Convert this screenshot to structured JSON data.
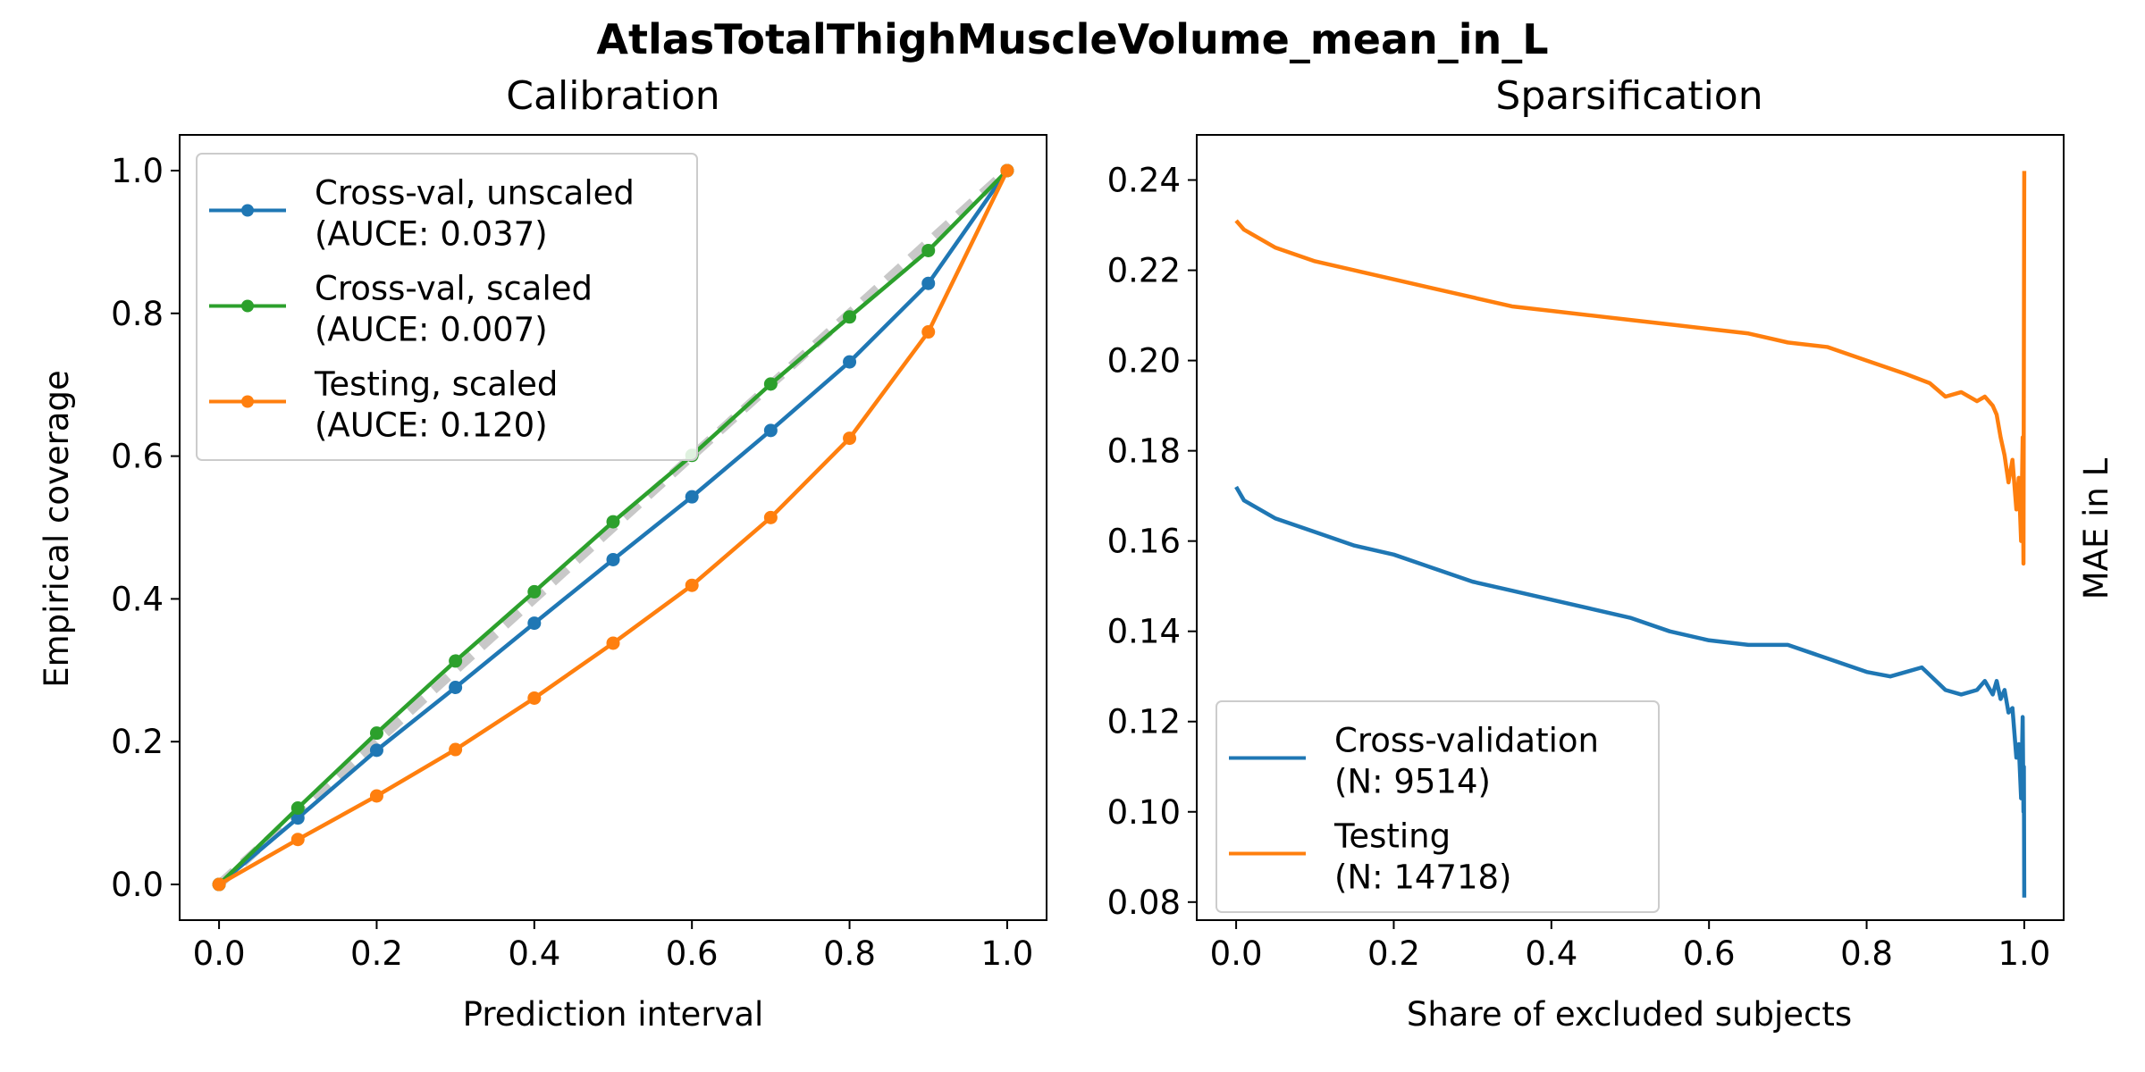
{
  "figure": {
    "suptitle": "AtlasTotalThighMuscleVolume_mean_in_L"
  },
  "chart_data": [
    {
      "type": "line",
      "title": "Calibration",
      "xlabel": "Prediction interval",
      "ylabel": "Empirical coverage",
      "xlim": [
        -0.05,
        1.05
      ],
      "ylim": [
        -0.05,
        1.05
      ],
      "xticks": [
        "0.0",
        "0.2",
        "0.4",
        "0.6",
        "0.8",
        "1.0"
      ],
      "yticks": [
        "0.0",
        "0.2",
        "0.4",
        "0.6",
        "0.8",
        "1.0"
      ],
      "grid": false,
      "legend_position": "upper left",
      "reference_line": {
        "x": [
          0,
          1
        ],
        "y": [
          0,
          1
        ],
        "color": "#c8c8c8",
        "style": "dashed"
      },
      "x": [
        0.0,
        0.1,
        0.2,
        0.3,
        0.4,
        0.5,
        0.6,
        0.7,
        0.8,
        0.9,
        1.0
      ],
      "series": [
        {
          "name": "Cross-val, unscaled",
          "name_extra": "(AUCE: 0.037)",
          "color": "#1f77b4",
          "marker": "circle",
          "values": [
            0.0,
            0.093,
            0.188,
            0.276,
            0.366,
            0.455,
            0.543,
            0.636,
            0.732,
            0.842,
            1.0
          ]
        },
        {
          "name": "Cross-val, scaled",
          "name_extra": "(AUCE: 0.007)",
          "color": "#2ca02c",
          "marker": "circle",
          "values": [
            0.0,
            0.107,
            0.212,
            0.313,
            0.41,
            0.508,
            0.601,
            0.701,
            0.795,
            0.888,
            1.0
          ]
        },
        {
          "name": "Testing, scaled",
          "name_extra": "(AUCE: 0.120)",
          "color": "#ff7f0e",
          "marker": "circle",
          "values": [
            0.0,
            0.063,
            0.124,
            0.189,
            0.261,
            0.338,
            0.419,
            0.514,
            0.625,
            0.774,
            1.0
          ]
        }
      ]
    },
    {
      "type": "line",
      "title": "Sparsification",
      "xlabel": "Share of excluded subjects",
      "ylabel": "MAE in L",
      "ylabel_position": "right",
      "xlim": [
        -0.05,
        1.05
      ],
      "ylim": [
        0.076,
        0.25
      ],
      "xticks": [
        "0.0",
        "0.2",
        "0.4",
        "0.6",
        "0.8",
        "1.0"
      ],
      "yticks": [
        "0.08",
        "0.10",
        "0.12",
        "0.14",
        "0.16",
        "0.18",
        "0.20",
        "0.22",
        "0.24"
      ],
      "grid": false,
      "legend_position": "lower left",
      "series": [
        {
          "name": "Cross-validation",
          "name_extra": "(N: 9514)",
          "color": "#1f77b4",
          "x": [
            0.0,
            0.01,
            0.03,
            0.05,
            0.1,
            0.15,
            0.2,
            0.25,
            0.3,
            0.35,
            0.4,
            0.45,
            0.5,
            0.55,
            0.6,
            0.65,
            0.7,
            0.75,
            0.8,
            0.83,
            0.85,
            0.87,
            0.9,
            0.92,
            0.94,
            0.95,
            0.96,
            0.965,
            0.97,
            0.975,
            0.98,
            0.985,
            0.99,
            0.993,
            0.996,
            0.998,
            0.999,
            0.9995,
            1.0
          ],
          "values": [
            0.172,
            0.169,
            0.167,
            0.165,
            0.162,
            0.159,
            0.157,
            0.154,
            0.151,
            0.149,
            0.147,
            0.145,
            0.143,
            0.14,
            0.138,
            0.137,
            0.137,
            0.134,
            0.131,
            0.13,
            0.131,
            0.132,
            0.127,
            0.126,
            0.127,
            0.129,
            0.126,
            0.129,
            0.125,
            0.127,
            0.122,
            0.123,
            0.112,
            0.115,
            0.103,
            0.121,
            0.1,
            0.11,
            0.081
          ]
        },
        {
          "name": "Testing",
          "name_extra": "(N: 14718)",
          "color": "#ff7f0e",
          "x": [
            0.0,
            0.01,
            0.03,
            0.05,
            0.1,
            0.15,
            0.2,
            0.25,
            0.3,
            0.35,
            0.4,
            0.45,
            0.5,
            0.55,
            0.6,
            0.65,
            0.7,
            0.75,
            0.8,
            0.85,
            0.88,
            0.9,
            0.92,
            0.94,
            0.95,
            0.96,
            0.965,
            0.97,
            0.975,
            0.98,
            0.985,
            0.99,
            0.993,
            0.996,
            0.998,
            0.999,
            0.9995,
            1.0
          ],
          "values": [
            0.231,
            0.229,
            0.227,
            0.225,
            0.222,
            0.22,
            0.218,
            0.216,
            0.214,
            0.212,
            0.211,
            0.21,
            0.209,
            0.208,
            0.207,
            0.206,
            0.204,
            0.203,
            0.2,
            0.197,
            0.195,
            0.192,
            0.193,
            0.191,
            0.192,
            0.19,
            0.188,
            0.183,
            0.179,
            0.173,
            0.178,
            0.167,
            0.174,
            0.16,
            0.183,
            0.155,
            0.201,
            0.242
          ]
        }
      ]
    }
  ]
}
